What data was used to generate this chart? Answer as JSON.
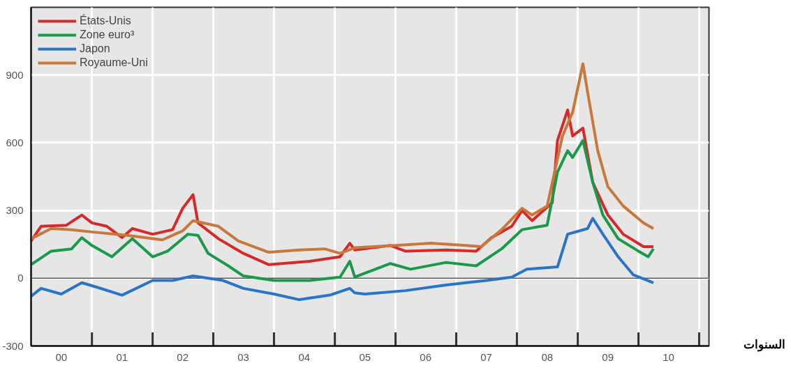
{
  "chart_data": {
    "type": "line",
    "xlabel": "السنوات",
    "xlim": [
      "2000-01",
      "2011-03"
    ],
    "ylim": [
      -300,
      1200
    ],
    "xticks": [
      {
        "value": "2000-07",
        "label": "00"
      },
      {
        "value": "2001",
        "label": null
      },
      {
        "value": "2001-07",
        "label": "01"
      },
      {
        "value": "2002",
        "label": null
      },
      {
        "value": "2002-07",
        "label": "02"
      },
      {
        "value": "2003",
        "label": null
      },
      {
        "value": "2003-07",
        "label": "03"
      },
      {
        "value": "2004",
        "label": null
      },
      {
        "value": "2004-07",
        "label": "04"
      },
      {
        "value": "2005",
        "label": null
      },
      {
        "value": "2005-07",
        "label": "05"
      },
      {
        "value": "2006",
        "label": null
      },
      {
        "value": "2006-07",
        "label": "06"
      },
      {
        "value": "2007",
        "label": null
      },
      {
        "value": "2007-07",
        "label": "07"
      },
      {
        "value": "2008",
        "label": null
      },
      {
        "value": "2008-07",
        "label": "08"
      },
      {
        "value": "2009",
        "label": null
      },
      {
        "value": "2009-07",
        "label": "09"
      },
      {
        "value": "2010",
        "label": null
      },
      {
        "value": "2010-07",
        "label": "10"
      },
      {
        "value": "2011",
        "label": null
      }
    ],
    "yticks": [
      -300,
      0,
      300,
      600,
      900
    ],
    "grid": true,
    "legend": "top left",
    "marker": "none",
    "line_style": "solid",
    "series": [
      {
        "name": "États-Unis",
        "color": "#d62a2a",
        "x": [
          "2000-01",
          "2000-03",
          "2000-08",
          "2000-11",
          "2001-01",
          "2001-04",
          "2001-07",
          "2001-09",
          "2002-01",
          "2002-05",
          "2002-07",
          "2002-09",
          "2002-10",
          "2003-02",
          "2003-07",
          "2003-12",
          "2004-08",
          "2005-02",
          "2005-04",
          "2005-05",
          "2005-12",
          "2006-03",
          "2006-11",
          "2007-05",
          "2007-08",
          "2007-12",
          "2008-02",
          "2008-04",
          "2008-08",
          "2008-09",
          "2008-11",
          "2008-12",
          "2009-02",
          "2009-04",
          "2009-07",
          "2009-10",
          "2010-02",
          "2010-04"
        ],
        "values": [
          165,
          230,
          235,
          280,
          245,
          230,
          180,
          220,
          195,
          215,
          310,
          370,
          245,
          175,
          110,
          60,
          75,
          95,
          155,
          125,
          145,
          120,
          125,
          120,
          180,
          230,
          300,
          255,
          335,
          610,
          745,
          630,
          665,
          425,
          280,
          195,
          140,
          140
        ]
      },
      {
        "name": "Zone euro³",
        "color": "#1a9a48",
        "x": [
          "2000-01",
          "2000-05",
          "2000-09",
          "2000-11",
          "2001-01",
          "2001-05",
          "2001-09",
          "2002-01",
          "2002-04",
          "2002-08",
          "2002-10",
          "2002-12",
          "2003-04",
          "2003-07",
          "2004-01",
          "2004-08",
          "2005-02",
          "2005-04",
          "2005-05",
          "2005-12",
          "2006-04",
          "2006-11",
          "2007-05",
          "2007-10",
          "2008-02",
          "2008-07",
          "2008-09",
          "2008-11",
          "2008-12",
          "2009-02",
          "2009-04",
          "2009-06",
          "2009-09",
          "2010-01",
          "2010-03",
          "2010-04"
        ],
        "values": [
          60,
          120,
          130,
          180,
          145,
          95,
          175,
          95,
          120,
          195,
          190,
          110,
          55,
          10,
          -10,
          -10,
          5,
          75,
          5,
          65,
          40,
          70,
          55,
          130,
          215,
          235,
          470,
          565,
          535,
          610,
          425,
          280,
          175,
          120,
          95,
          130
        ]
      },
      {
        "name": "Japon",
        "color": "#2a74c8",
        "x": [
          "2000-01",
          "2000-03",
          "2000-07",
          "2000-11",
          "2001-02",
          "2001-07",
          "2002-01",
          "2002-05",
          "2002-09",
          "2003-03",
          "2003-07",
          "2004-01",
          "2004-06",
          "2004-12",
          "2005-04",
          "2005-05",
          "2005-07",
          "2006-03",
          "2006-11",
          "2007-07",
          "2007-12",
          "2008-03",
          "2008-09",
          "2008-11",
          "2009-03",
          "2009-04",
          "2009-06",
          "2009-09",
          "2009-12",
          "2010-04"
        ],
        "values": [
          -80,
          -45,
          -70,
          -20,
          -40,
          -75,
          -10,
          -10,
          10,
          -10,
          -45,
          -70,
          -95,
          -75,
          -45,
          -65,
          -70,
          -55,
          -30,
          -10,
          5,
          40,
          50,
          195,
          220,
          265,
          195,
          95,
          15,
          -20
        ]
      },
      {
        "name": "Royaume-Uni",
        "color": "#c8783a",
        "x": [
          "2000-01",
          "2000-05",
          "2000-09",
          "2001-01",
          "2001-08",
          "2002-03",
          "2002-07",
          "2002-09",
          "2003-02",
          "2003-06",
          "2003-12",
          "2004-06",
          "2004-11",
          "2005-02",
          "2005-05",
          "2006-01",
          "2006-08",
          "2007-03",
          "2007-06",
          "2007-10",
          "2008-02",
          "2008-04",
          "2008-07",
          "2008-10",
          "2008-12",
          "2009-02",
          "2009-03",
          "2009-05",
          "2009-07",
          "2009-10",
          "2010-02",
          "2010-04"
        ],
        "values": [
          175,
          220,
          215,
          205,
          190,
          170,
          210,
          255,
          230,
          165,
          115,
          125,
          130,
          110,
          135,
          145,
          155,
          145,
          140,
          215,
          310,
          280,
          320,
          630,
          735,
          950,
          825,
          565,
          405,
          320,
          245,
          220
        ]
      }
    ]
  }
}
